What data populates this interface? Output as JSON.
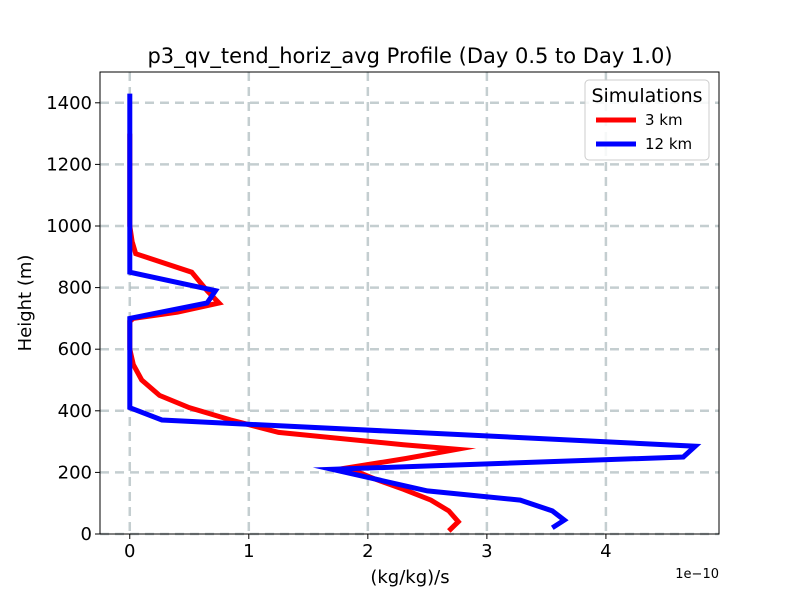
{
  "chart_data": {
    "type": "line",
    "title": "p3_qv_tend_horiz_avg Profile (Day 0.5 to Day 1.0)",
    "xlabel": "(kg/kg)/s",
    "ylabel": "Height (m)",
    "x_offset_label": "1e−10",
    "x_scale": 1e-10,
    "xlim": [
      -0.25,
      4.95
    ],
    "ylim": [
      0,
      1500
    ],
    "xticks": [
      0,
      1,
      2,
      3,
      4
    ],
    "xtick_labels": [
      "0",
      "1",
      "2",
      "3",
      "4"
    ],
    "yticks": [
      0,
      200,
      400,
      600,
      800,
      1000,
      1200,
      1400
    ],
    "ytick_labels": [
      "0",
      "200",
      "400",
      "600",
      "800",
      "1000",
      "1200",
      "1400"
    ],
    "grid": true,
    "legend": {
      "title": "Simulations",
      "location": "upper right"
    },
    "series": [
      {
        "name": "3 km",
        "color": "#ff0000",
        "x": [
          2.68,
          2.76,
          2.68,
          2.53,
          2.3,
          2.05,
          1.83,
          2.32,
          2.75,
          2.3,
          1.25,
          0.85,
          0.5,
          0.25,
          0.1,
          0.03,
          0.0,
          0.0,
          0.0,
          0.03,
          0.4,
          0.75,
          0.65,
          0.52,
          0.05,
          0.02,
          0.0,
          0.0,
          0.0,
          0.0
        ],
        "y": [
          10,
          40,
          75,
          110,
          145,
          180,
          215,
          245,
          275,
          290,
          330,
          370,
          410,
          450,
          500,
          550,
          600,
          650,
          690,
          700,
          720,
          750,
          790,
          850,
          910,
          950,
          1000,
          1100,
          1200,
          1300
        ]
      },
      {
        "name": "12 km",
        "color": "#0000ff",
        "x": [
          3.55,
          3.65,
          3.55,
          3.28,
          2.5,
          1.7,
          4.65,
          4.75,
          0.27,
          0.0,
          0.0,
          0.0,
          0.0,
          0.0,
          0.65,
          0.72,
          0.0,
          0.0,
          0.0,
          0.0,
          0.0,
          0.0,
          0.0
        ],
        "y": [
          20,
          45,
          75,
          110,
          140,
          210,
          250,
          285,
          370,
          410,
          500,
          600,
          690,
          700,
          750,
          790,
          850,
          900,
          1000,
          1100,
          1200,
          1300,
          1430
        ]
      }
    ]
  }
}
